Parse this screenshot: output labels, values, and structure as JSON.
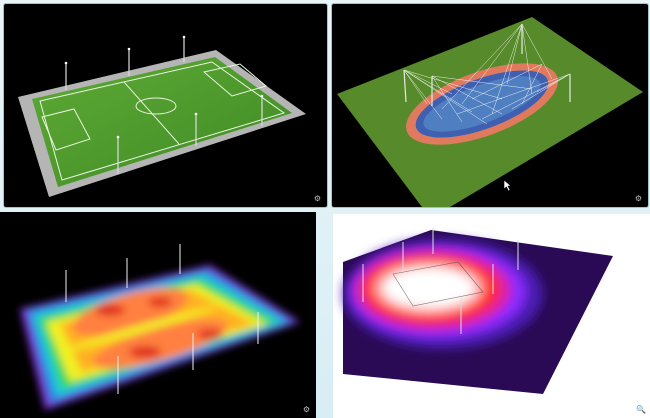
{
  "views": [
    {
      "id": "soccer-field",
      "icon": "settings-icon"
    },
    {
      "id": "running-track",
      "icon": "settings-icon"
    },
    {
      "id": "soccer-heatmap",
      "icon": "settings-icon"
    },
    {
      "id": "arena-heatmap",
      "icon": "magnifier-icon"
    }
  ],
  "colors": {
    "grass": "#4f9a2c",
    "grass_track": "#5a8a2a",
    "track": "#e07a5f",
    "infield": "#3f5fb0",
    "heat_low": "#5a2fd0",
    "heat_high": "#ff2a1a"
  },
  "icons": {
    "settings": "⚙",
    "magnifier": "🔍"
  }
}
